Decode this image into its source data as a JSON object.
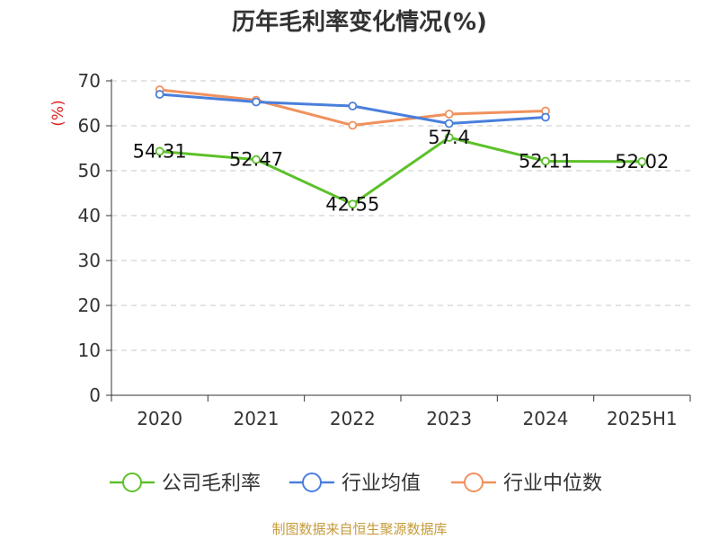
{
  "chart_data": {
    "type": "line",
    "title": "历年毛利率变化情况(%)",
    "ylabel": "(%)",
    "xlabel": "",
    "categories": [
      "2020",
      "2021",
      "2022",
      "2023",
      "2024",
      "2025H1"
    ],
    "ylim": [
      0,
      70
    ],
    "yticks": [
      0,
      10,
      20,
      30,
      40,
      50,
      60,
      70
    ],
    "grid": true,
    "legend_position": "bottom",
    "series": [
      {
        "name": "公司毛利率",
        "color": "#5cc12a",
        "values": [
          54.31,
          52.47,
          42.55,
          57.4,
          52.11,
          52.02
        ],
        "labels": [
          "54.31",
          "52.47",
          "42.55",
          "57.4",
          "52.11",
          "52.02"
        ]
      },
      {
        "name": "行业均值",
        "color": "#4a7fdc",
        "values": [
          67.0,
          65.3,
          64.4,
          60.5,
          61.9,
          null
        ]
      },
      {
        "name": "行业中位数",
        "color": "#f0915e",
        "values": [
          68.0,
          65.7,
          60.1,
          62.6,
          63.3,
          null
        ]
      }
    ]
  },
  "source_text": "制图数据来自恒生聚源数据库"
}
